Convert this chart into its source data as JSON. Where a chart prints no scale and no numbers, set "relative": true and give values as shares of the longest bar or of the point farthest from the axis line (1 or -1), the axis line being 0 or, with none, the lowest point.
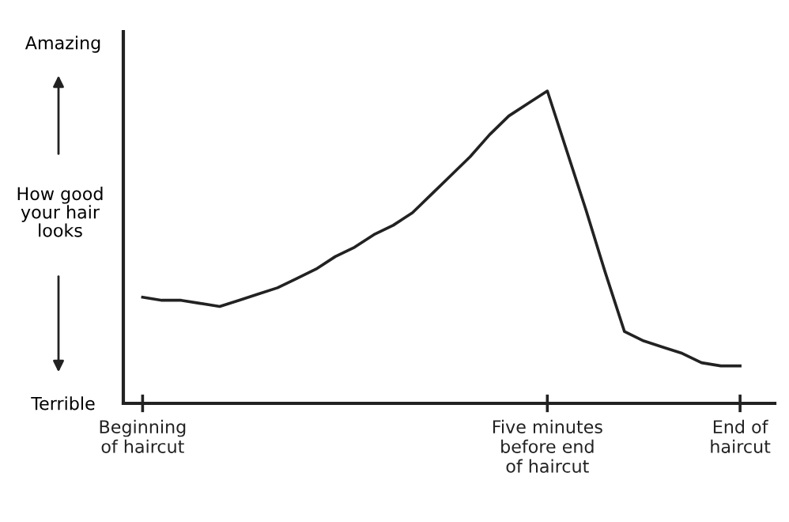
{
  "chart_data": {
    "type": "line",
    "relative": true,
    "color": "#222222",
    "ylabel": "How good\nyour hair\nlooks",
    "annotations": [
      "Amazing",
      "Terrible"
    ],
    "categories": [
      "Beginning\nof haircut",
      null,
      null,
      null,
      null,
      null,
      null,
      null,
      null,
      null,
      null,
      null,
      null,
      null,
      null,
      null,
      null,
      null,
      null,
      null,
      null,
      "Five minutes\nbefore end\nof haircut",
      null,
      null,
      null,
      null,
      null,
      null,
      null,
      null,
      null,
      "End of\nhaircut"
    ],
    "values": [
      0.34,
      0.33,
      0.33,
      0.32,
      0.31,
      0.33,
      0.35,
      0.37,
      0.4,
      0.43,
      0.47,
      0.5,
      0.54,
      0.57,
      0.61,
      0.67,
      0.73,
      0.79,
      0.86,
      0.92,
      0.96,
      1,
      0.81,
      0.62,
      0.42,
      0.23,
      0.2,
      0.18,
      0.16,
      0.13,
      0.12,
      0.12
    ],
    "tick_labels": "x",
    "grid": false,
    "marker": "none",
    "line_style": "solid"
  }
}
